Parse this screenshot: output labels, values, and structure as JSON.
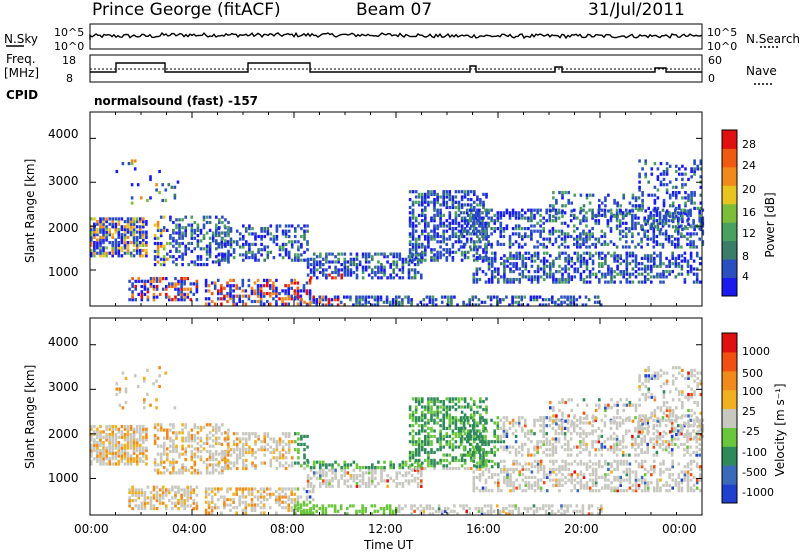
{
  "header": {
    "station": "Prince George (fitACF)",
    "beam": "Beam 07",
    "date": "31/Jul/2011"
  },
  "noise_panel": {
    "left_label": "N.Sky",
    "right_label": "N.Search",
    "left_ticks": [
      "10^5",
      "10^0"
    ],
    "right_ticks": [
      "10^5",
      "10^0"
    ]
  },
  "freq_panel": {
    "left_label_1": "Freq.",
    "left_label_2": "[MHz]",
    "right_label": "Nave",
    "left_ticks": [
      "18",
      "8"
    ],
    "right_ticks": [
      "60",
      "0"
    ]
  },
  "cpid": {
    "label": "CPID",
    "program": "normalsound (fast) -157"
  },
  "power_panel": {
    "ylabel": "Slant Range [km]",
    "yticks": [
      "4000",
      "3000",
      "2000",
      "1000"
    ],
    "colorbar_label": "Power [dB]",
    "colorbar_ticks": [
      "28",
      "24",
      "20",
      "16",
      "12",
      "8",
      "4"
    ],
    "colors": [
      "#1a1aee",
      "#2a4fc0",
      "#3c7d6a",
      "#4aa060",
      "#7dbd3a",
      "#e8c420",
      "#f08a1a",
      "#f05a10",
      "#e01010"
    ]
  },
  "velocity_panel": {
    "ylabel": "Slant Range [km]",
    "yticks": [
      "4000",
      "3000",
      "2000",
      "1000"
    ],
    "colorbar_label": "Velocity [m s⁻¹]",
    "colorbar_ticks": [
      "1000",
      "500",
      "100",
      "25",
      "-25",
      "-100",
      "-500",
      "-1000"
    ],
    "colors": [
      "#2040d0",
      "#3b6bb8",
      "#2f8a5a",
      "#6ac63a",
      "#c8c8c0",
      "#f0b020",
      "#f08a1a",
      "#f05010",
      "#e01010"
    ]
  },
  "xaxis": {
    "ticks": [
      "00:00",
      "04:00",
      "08:00",
      "12:00",
      "16:00",
      "20:00",
      "00:00"
    ],
    "label": "Time UT"
  },
  "chart_data": [
    {
      "type": "heatmap",
      "title": "Power [dB]",
      "xlabel": "Time UT",
      "ylabel": "Slant Range [km]",
      "xlim": [
        0,
        24
      ],
      "ylim": [
        180,
        4600
      ],
      "colorbar_ticks": [
        4,
        8,
        12,
        16,
        20,
        24,
        28
      ]
    },
    {
      "type": "heatmap",
      "title": "Velocity [m s-1]",
      "xlabel": "Time UT",
      "ylabel": "Slant Range [km]",
      "xlim": [
        0,
        24
      ],
      "ylim": [
        180,
        4600
      ],
      "colorbar_ticks": [
        -1000,
        -500,
        -100,
        -25,
        25,
        100,
        500,
        1000
      ]
    }
  ]
}
